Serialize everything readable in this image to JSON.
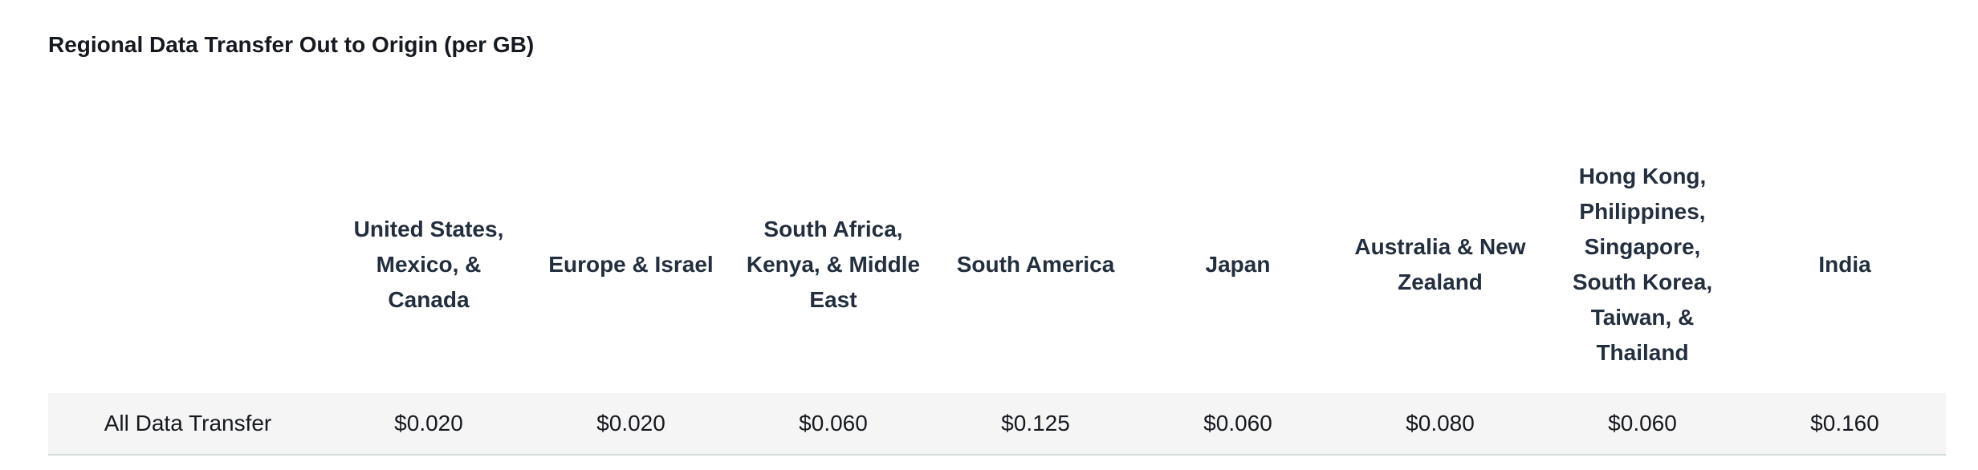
{
  "title": "Regional Data Transfer Out to Origin (per GB)",
  "columns": [
    "",
    "United States, Mexico, & Canada",
    "Europe & Israel",
    "South Africa, Kenya, & Middle East",
    "South America",
    "Japan",
    "Australia & New Zealand",
    "Hong Kong, Philippines, Singapore, South Korea, Taiwan, & Thailand",
    "India"
  ],
  "rows": [
    {
      "label": "All Data Transfer",
      "values": [
        "$0.020",
        "$0.020",
        "$0.060",
        "$0.125",
        "$0.060",
        "$0.080",
        "$0.060",
        "$0.160"
      ]
    }
  ]
}
